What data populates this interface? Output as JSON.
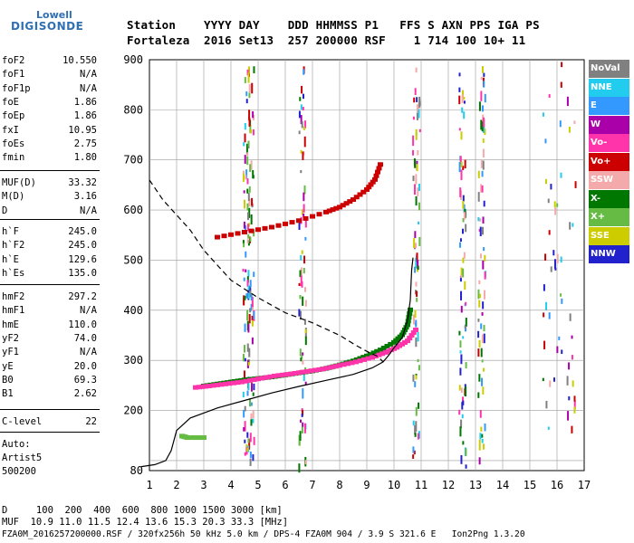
{
  "logo": {
    "top": "Lowell",
    "main": "DIGISONDE"
  },
  "header": {
    "line1": "Station    YYYY DAY    DDD HHMMSS P1   FFS S AXN PPS IGA PS",
    "line2": "Fortaleza  2016 Set13  257 200000 RSF    1 714 100 10+ 11"
  },
  "params_group1": [
    {
      "name": "foF2",
      "value": "10.550"
    },
    {
      "name": "foF1",
      "value": "N/A"
    },
    {
      "name": "foF1p",
      "value": "N/A"
    },
    {
      "name": "foE",
      "value": "1.86"
    },
    {
      "name": "foEp",
      "value": "1.86"
    },
    {
      "name": "fxI",
      "value": "10.95"
    },
    {
      "name": "foEs",
      "value": "2.75"
    },
    {
      "name": "fmin",
      "value": "1.80"
    }
  ],
  "params_group2": [
    {
      "name": "MUF(D)",
      "value": "33.32"
    },
    {
      "name": "M(D)",
      "value": "3.16"
    },
    {
      "name": "D",
      "value": "N/A"
    }
  ],
  "params_group3": [
    {
      "name": "h`F",
      "value": "245.0"
    },
    {
      "name": "h`F2",
      "value": "245.0"
    },
    {
      "name": "h`E",
      "value": "129.6"
    },
    {
      "name": "h`Es",
      "value": "135.0"
    }
  ],
  "params_group4": [
    {
      "name": "hmF2",
      "value": "297.2"
    },
    {
      "name": "hmF1",
      "value": "N/A"
    },
    {
      "name": "hmE",
      "value": "110.0"
    },
    {
      "name": "yF2",
      "value": "74.0"
    },
    {
      "name": "yF1",
      "value": "N/A"
    },
    {
      "name": "yE",
      "value": "20.0"
    },
    {
      "name": "B0",
      "value": "69.3"
    },
    {
      "name": "B1",
      "value": "2.62"
    }
  ],
  "params_group5": [
    {
      "name": "C-level",
      "value": "22"
    }
  ],
  "autoscaling": {
    "line1": "Auto:",
    "line2": "Artist5",
    "line3": "500200"
  },
  "legend": [
    {
      "label": "NoVal",
      "color": "#808080"
    },
    {
      "label": "NNE",
      "color": "#22ccee"
    },
    {
      "label": "E",
      "color": "#3399ff"
    },
    {
      "label": "W",
      "color": "#aa00aa"
    },
    {
      "label": "Vo-",
      "color": "#ff33aa"
    },
    {
      "label": "Vo+",
      "color": "#cc0000"
    },
    {
      "label": "SSW",
      "color": "#f4aaaa"
    },
    {
      "label": "X-",
      "color": "#007700"
    },
    {
      "label": "X+",
      "color": "#66bb44"
    },
    {
      "label": "SSE",
      "color": "#cccc00"
    },
    {
      "label": "NNW",
      "color": "#2222cc"
    }
  ],
  "bottom": {
    "line1": "D     100  200  400  600  800 1000 1500 3000 [km]",
    "line2": "MUF  10.9 11.0 11.5 12.4 13.6 15.3 20.3 33.3 [MHz]",
    "line3": "FZA0M_2016257200000.RSF / 320fx256h 50 kHz 5.0 km / DPS-4 FZA0M 904 / 3.9 S 321.6 E   Ion2Png 1.3.20"
  },
  "chart_data": {
    "type": "scatter",
    "xlim": [
      1,
      17
    ],
    "ylim": [
      80,
      900
    ],
    "x_ticks": [
      1,
      2,
      3,
      4,
      5,
      6,
      7,
      8,
      9,
      10,
      11,
      12,
      13,
      14,
      15,
      16,
      17
    ],
    "y_ticks": [
      80,
      100,
      200,
      300,
      400,
      500,
      600,
      700,
      800,
      900
    ],
    "y_tick_labels": [
      "80",
      "",
      "200",
      "300",
      "400",
      "500",
      "600",
      "700",
      "800",
      "900"
    ],
    "grid": true,
    "series": [
      {
        "name": "X-",
        "color": "#007700",
        "trace": "F2 o-trace",
        "points": [
          [
            3.0,
            248
          ],
          [
            3.5,
            252
          ],
          [
            4.0,
            256
          ],
          [
            4.5,
            260
          ],
          [
            5.0,
            263
          ],
          [
            5.5,
            266
          ],
          [
            6.0,
            270
          ],
          [
            6.5,
            274
          ],
          [
            7.0,
            278
          ],
          [
            7.5,
            283
          ],
          [
            8.0,
            290
          ],
          [
            8.5,
            298
          ],
          [
            9.0,
            308
          ],
          [
            9.5,
            320
          ],
          [
            10.0,
            335
          ],
          [
            10.3,
            350
          ],
          [
            10.5,
            370
          ],
          [
            10.6,
            400
          ]
        ]
      },
      {
        "name": "Vo-",
        "color": "#ff33aa",
        "trace": "F2 x-trace",
        "points": [
          [
            2.7,
            245
          ],
          [
            3.2,
            248
          ],
          [
            3.8,
            252
          ],
          [
            4.4,
            256
          ],
          [
            5.0,
            262
          ],
          [
            5.6,
            268
          ],
          [
            6.2,
            272
          ],
          [
            6.8,
            277
          ],
          [
            7.4,
            282
          ],
          [
            8.0,
            289
          ],
          [
            8.6,
            296
          ],
          [
            9.2,
            305
          ],
          [
            9.7,
            315
          ],
          [
            10.1,
            325
          ],
          [
            10.5,
            338
          ],
          [
            10.8,
            360
          ]
        ]
      },
      {
        "name": "Vo+",
        "color": "#cc0000",
        "trace": "F2 second-hop",
        "points": [
          [
            3.5,
            545
          ],
          [
            4.5,
            555
          ],
          [
            5.5,
            565
          ],
          [
            6.5,
            578
          ],
          [
            7.5,
            595
          ],
          [
            8.0,
            605
          ],
          [
            8.5,
            620
          ],
          [
            9.0,
            640
          ],
          [
            9.3,
            660
          ],
          [
            9.5,
            690
          ]
        ]
      },
      {
        "name": "X+",
        "color": "#66bb44",
        "trace": "sporadic E",
        "points": [
          [
            2.2,
            148
          ],
          [
            2.4,
            145
          ],
          [
            2.6,
            145
          ],
          [
            2.8,
            145
          ],
          [
            3.0,
            145
          ]
        ]
      }
    ],
    "profile_solid": [
      [
        0.7,
        88
      ],
      [
        1.2,
        92
      ],
      [
        1.6,
        100
      ],
      [
        1.8,
        120
      ],
      [
        2.0,
        160
      ],
      [
        2.5,
        185
      ],
      [
        3.5,
        205
      ],
      [
        4.5,
        220
      ],
      [
        5.5,
        235
      ],
      [
        6.5,
        248
      ],
      [
        7.5,
        260
      ],
      [
        8.5,
        272
      ],
      [
        9.2,
        285
      ],
      [
        9.6,
        297
      ],
      [
        9.8,
        310
      ],
      [
        10.0,
        325
      ],
      [
        10.3,
        345
      ],
      [
        10.5,
        380
      ],
      [
        10.6,
        420
      ],
      [
        10.65,
        480
      ],
      [
        10.7,
        505
      ]
    ],
    "profile_dashed": [
      [
        1.0,
        660
      ],
      [
        1.5,
        620
      ],
      [
        2.0,
        590
      ],
      [
        2.5,
        560
      ],
      [
        3.0,
        520
      ],
      [
        3.5,
        490
      ],
      [
        4.0,
        460
      ],
      [
        5.0,
        425
      ],
      [
        6.0,
        395
      ],
      [
        7.0,
        375
      ],
      [
        8.0,
        350
      ],
      [
        8.6,
        330
      ],
      [
        9.0,
        318
      ],
      [
        9.4,
        308
      ],
      [
        9.6,
        297
      ]
    ]
  }
}
